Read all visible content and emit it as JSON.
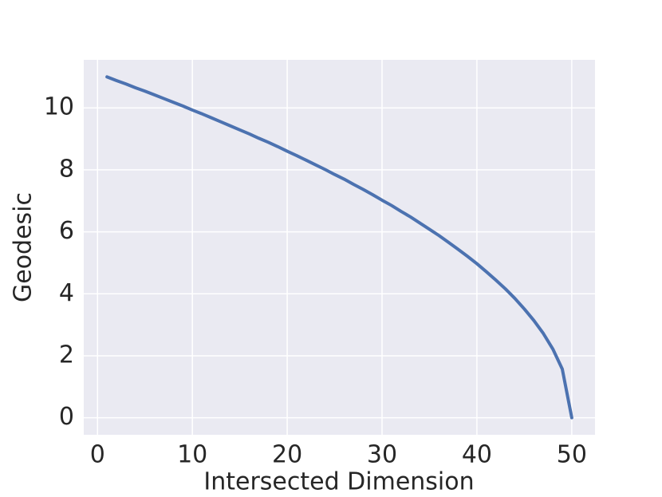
{
  "chart_data": {
    "type": "line",
    "xlabel": "Intersected Dimension",
    "ylabel": "Geodesic",
    "x": [
      1,
      2,
      3,
      4,
      5,
      6,
      7,
      8,
      9,
      10,
      11,
      12,
      13,
      14,
      15,
      16,
      17,
      18,
      19,
      20,
      21,
      22,
      23,
      24,
      25,
      26,
      27,
      28,
      29,
      30,
      31,
      32,
      33,
      34,
      35,
      36,
      37,
      38,
      39,
      40,
      41,
      42,
      43,
      44,
      45,
      46,
      47,
      48,
      49,
      50
    ],
    "series": [
      {
        "color": "#4c72b0",
        "values": [
          11.0,
          10.88,
          10.77,
          10.65,
          10.54,
          10.42,
          10.3,
          10.18,
          10.06,
          9.93,
          9.81,
          9.68,
          9.55,
          9.42,
          9.29,
          9.16,
          9.02,
          8.89,
          8.75,
          8.6,
          8.46,
          8.31,
          8.16,
          8.01,
          7.85,
          7.7,
          7.53,
          7.37,
          7.2,
          7.02,
          6.85,
          6.66,
          6.48,
          6.28,
          6.08,
          5.88,
          5.66,
          5.44,
          5.21,
          4.97,
          4.71,
          4.44,
          4.16,
          3.85,
          3.51,
          3.14,
          2.72,
          2.22,
          1.57,
          0.0
        ]
      }
    ],
    "xlim": [
      -1.45,
      52.45
    ],
    "xticks": [
      0,
      10,
      20,
      30,
      40,
      50
    ],
    "ylim": [
      -0.55,
      11.55
    ],
    "yticks": [
      0,
      2,
      4,
      6,
      8,
      10
    ],
    "grid": true
  }
}
